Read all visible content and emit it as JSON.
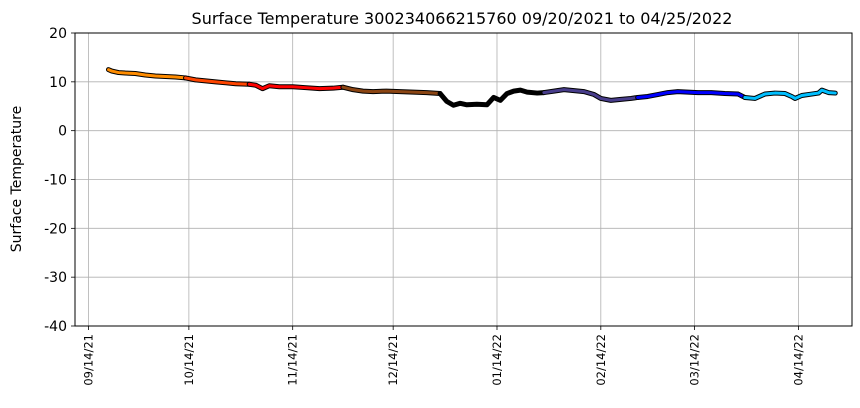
{
  "chart_data": {
    "type": "line",
    "title": "Surface Temperature 300234066215760  09/20/2021 to 04/25/2022",
    "xlabel": "",
    "ylabel": "Surface Temperature",
    "ylim": [
      -40,
      20
    ],
    "yticks": [
      -40,
      -30,
      -20,
      -10,
      0,
      10,
      20
    ],
    "xlim": [
      "2021-09-10",
      "2022-04-30"
    ],
    "xtick_dates": [
      "2021-09-14",
      "2021-10-14",
      "2021-11-14",
      "2021-12-14",
      "2022-01-14",
      "2022-02-14",
      "2022-03-14",
      "2022-04-14"
    ],
    "xtick_labels": [
      "09/14/21",
      "10/14/21",
      "11/14/21",
      "12/14/21",
      "01/14/22",
      "02/14/22",
      "03/14/22",
      "04/14/22"
    ],
    "grid": true,
    "legend": "none",
    "series": [
      {
        "color": "#ff8c00",
        "points": [
          [
            "2021-09-20",
            12.5
          ],
          [
            "2021-09-21",
            12.2
          ],
          [
            "2021-09-23",
            11.9
          ],
          [
            "2021-09-25",
            11.8
          ],
          [
            "2021-09-28",
            11.7
          ],
          [
            "2021-10-01",
            11.4
          ],
          [
            "2021-10-04",
            11.2
          ],
          [
            "2021-10-07",
            11.1
          ],
          [
            "2021-10-10",
            11.0
          ],
          [
            "2021-10-13",
            10.8
          ]
        ]
      },
      {
        "color": "#ff4500",
        "points": [
          [
            "2021-10-13",
            10.8
          ],
          [
            "2021-10-16",
            10.4
          ],
          [
            "2021-10-19",
            10.2
          ],
          [
            "2021-10-22",
            10.0
          ],
          [
            "2021-10-25",
            9.8
          ],
          [
            "2021-10-28",
            9.6
          ],
          [
            "2021-11-01",
            9.5
          ]
        ]
      },
      {
        "color": "#ff0000",
        "points": [
          [
            "2021-11-01",
            9.5
          ],
          [
            "2021-11-03",
            9.3
          ],
          [
            "2021-11-05",
            8.6
          ],
          [
            "2021-11-07",
            9.2
          ],
          [
            "2021-11-10",
            9.0
          ],
          [
            "2021-11-14",
            9.0
          ],
          [
            "2021-11-18",
            8.8
          ],
          [
            "2021-11-22",
            8.6
          ],
          [
            "2021-11-26",
            8.7
          ],
          [
            "2021-11-29",
            8.9
          ]
        ]
      },
      {
        "color": "#8b4513",
        "points": [
          [
            "2021-11-29",
            8.9
          ],
          [
            "2021-12-02",
            8.4
          ],
          [
            "2021-12-05",
            8.1
          ],
          [
            "2021-12-08",
            8.0
          ],
          [
            "2021-12-12",
            8.1
          ],
          [
            "2021-12-16",
            8.0
          ],
          [
            "2021-12-20",
            7.9
          ],
          [
            "2021-12-24",
            7.8
          ],
          [
            "2021-12-28",
            7.6
          ]
        ]
      },
      {
        "color": "#000000",
        "points": [
          [
            "2021-12-28",
            7.6
          ],
          [
            "2021-12-30",
            6.0
          ],
          [
            "2022-01-01",
            5.2
          ],
          [
            "2022-01-03",
            5.6
          ],
          [
            "2022-01-05",
            5.3
          ],
          [
            "2022-01-08",
            5.4
          ],
          [
            "2022-01-11",
            5.3
          ],
          [
            "2022-01-13",
            6.8
          ],
          [
            "2022-01-15",
            6.2
          ],
          [
            "2022-01-17",
            7.6
          ],
          [
            "2022-01-19",
            8.1
          ],
          [
            "2022-01-21",
            8.3
          ],
          [
            "2022-01-23",
            7.9
          ],
          [
            "2022-01-26",
            7.7
          ],
          [
            "2022-01-28",
            7.8
          ]
        ]
      },
      {
        "color": "#483d8b",
        "points": [
          [
            "2022-01-28",
            7.8
          ],
          [
            "2022-01-31",
            8.1
          ],
          [
            "2022-02-03",
            8.4
          ],
          [
            "2022-02-06",
            8.2
          ],
          [
            "2022-02-09",
            8.0
          ],
          [
            "2022-02-12",
            7.4
          ],
          [
            "2022-02-14",
            6.6
          ],
          [
            "2022-02-17",
            6.2
          ],
          [
            "2022-02-20",
            6.4
          ],
          [
            "2022-02-23",
            6.6
          ],
          [
            "2022-02-25",
            6.8
          ]
        ]
      },
      {
        "color": "#0000ff",
        "points": [
          [
            "2022-02-25",
            6.8
          ],
          [
            "2022-02-28",
            7.0
          ],
          [
            "2022-03-03",
            7.4
          ],
          [
            "2022-03-06",
            7.8
          ],
          [
            "2022-03-09",
            8.0
          ],
          [
            "2022-03-12",
            7.9
          ],
          [
            "2022-03-15",
            7.8
          ],
          [
            "2022-03-19",
            7.8
          ],
          [
            "2022-03-23",
            7.6
          ],
          [
            "2022-03-27",
            7.5
          ],
          [
            "2022-03-29",
            6.8
          ]
        ]
      },
      {
        "color": "#00bfff",
        "points": [
          [
            "2022-03-29",
            6.8
          ],
          [
            "2022-04-01",
            6.6
          ],
          [
            "2022-04-04",
            7.5
          ],
          [
            "2022-04-07",
            7.7
          ],
          [
            "2022-04-10",
            7.6
          ],
          [
            "2022-04-12",
            7.0
          ],
          [
            "2022-04-13",
            6.6
          ],
          [
            "2022-04-15",
            7.2
          ],
          [
            "2022-04-18",
            7.5
          ],
          [
            "2022-04-20",
            7.7
          ],
          [
            "2022-04-21",
            8.3
          ],
          [
            "2022-04-23",
            7.8
          ],
          [
            "2022-04-25",
            7.7
          ]
        ]
      }
    ]
  }
}
